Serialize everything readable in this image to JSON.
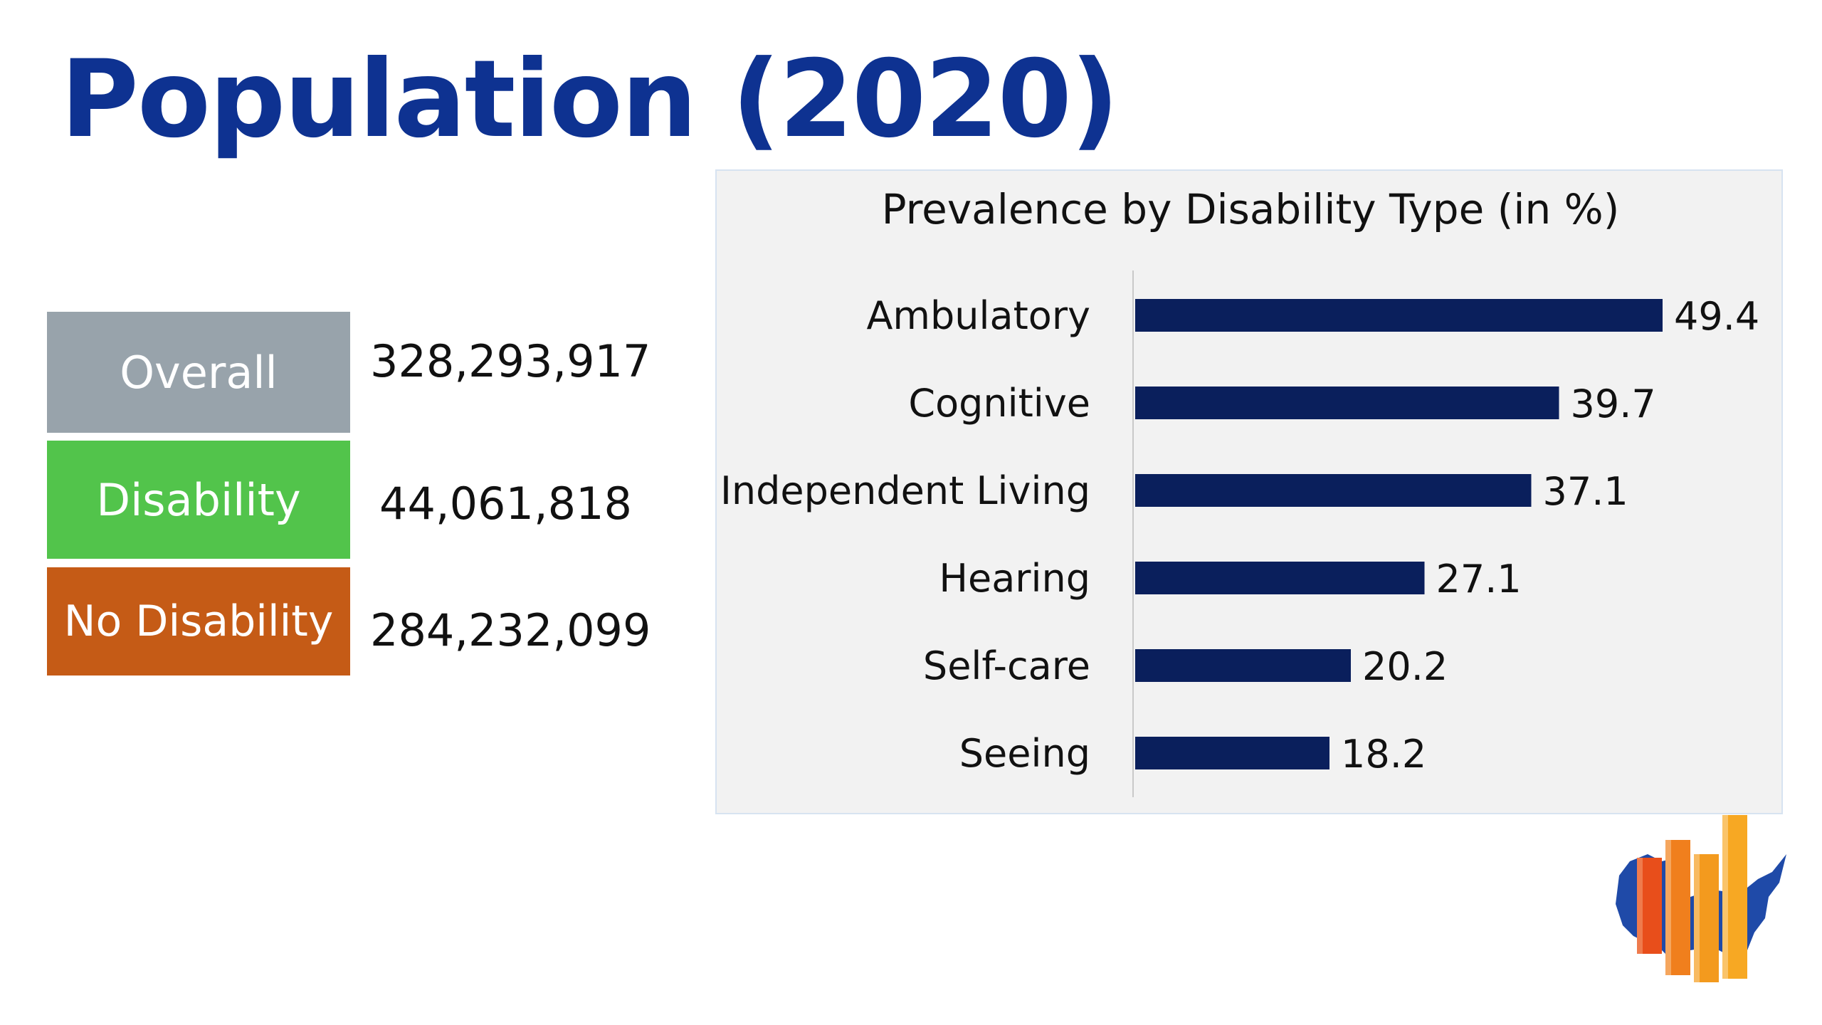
{
  "title": "Population (2020)",
  "stats": [
    {
      "label": "Overall",
      "value": "328,293,917"
    },
    {
      "label": "Disability",
      "value": "44,061,818"
    },
    {
      "label": "No Disability",
      "value": "284,232,099"
    }
  ],
  "colors": {
    "title": "#0e3291",
    "overall": "#98a3ab",
    "disability": "#52c44b",
    "no_disability": "#c55b16",
    "bar": "#0a1f5c",
    "panel": "#f2f2f2"
  },
  "chart_data": {
    "type": "bar",
    "orientation": "horizontal",
    "title": "Prevalence by Disability Type (in %)",
    "categories": [
      "Ambulatory",
      "Cognitive",
      "Independent Living",
      "Hearing",
      "Self-care",
      "Seeing"
    ],
    "values": [
      49.4,
      39.7,
      37.1,
      27.1,
      20.2,
      18.2
    ],
    "data_labels": [
      "49.4",
      "39.7",
      "37.1",
      "27.1",
      "20.2",
      "18.2"
    ],
    "xlabel": "",
    "ylabel": "",
    "xlim": [
      0,
      60
    ],
    "grid": false,
    "legend": "none"
  },
  "logo": {
    "icon": "us-map-bar-chart-logo"
  }
}
